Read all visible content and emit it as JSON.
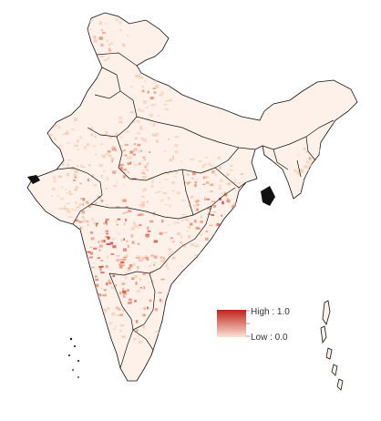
{
  "legend": {
    "high_label": "High : 1.0",
    "low_label": "Low : 0.0",
    "high_color": "#c0221a",
    "low_color": "#fbe3d6"
  },
  "colors": {
    "outline": "#111111",
    "background": "#ffffff",
    "base_fill": "#fdf1ea",
    "light": "#f8cdb8",
    "medium": "#ef8f72",
    "strong": "#d9483a"
  }
}
